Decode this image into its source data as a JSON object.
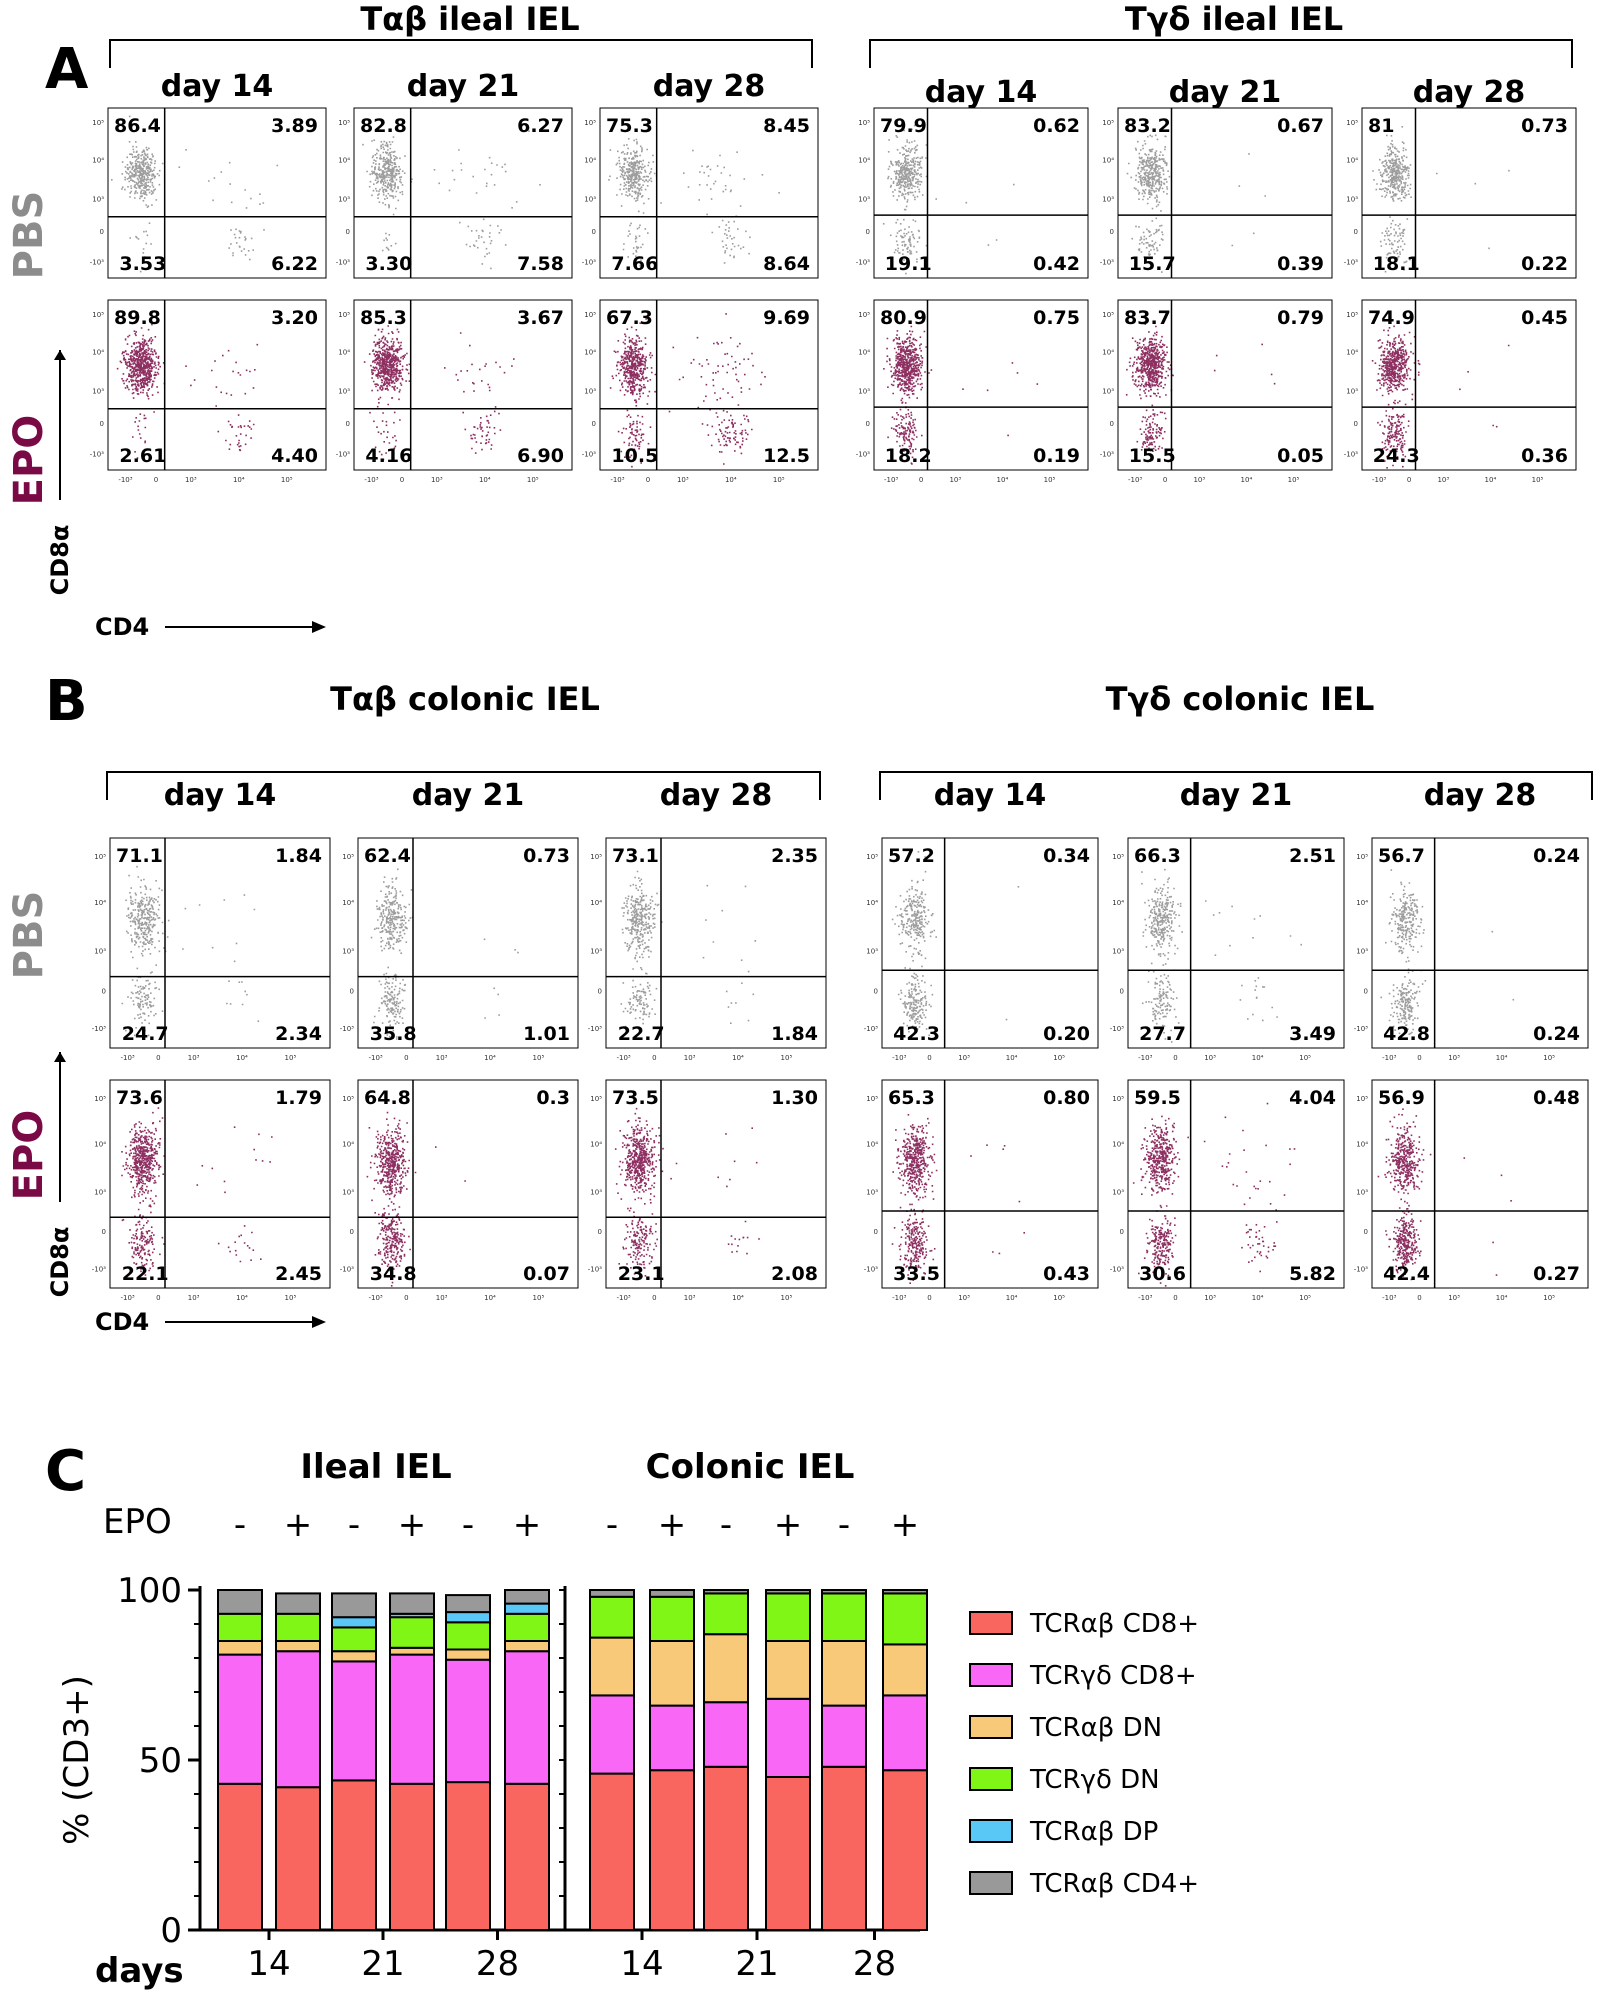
{
  "panels": {
    "A": "A",
    "B": "B",
    "C": "C"
  },
  "axis": {
    "y": "CD8α",
    "x": "CD4",
    "ticks": [
      "10⁵",
      "10⁴",
      "10³",
      "0",
      "-10³"
    ],
    "xticks": [
      "-10³",
      "0",
      "10³",
      "10⁴",
      "10⁵"
    ]
  },
  "row_labels": {
    "pbs": "PBS",
    "epo": "EPO"
  },
  "colors": {
    "pbs": "#8c8c8c",
    "epo": "#7a0a45"
  },
  "flow_sections": [
    {
      "id": "ileal",
      "groups": [
        {
          "title": "Tαβ ileal IEL",
          "days": [
            "day 14",
            "day 21",
            "day 28"
          ],
          "pbs": [
            [
              "86.4",
              "3.89",
              "3.53",
              "6.22"
            ],
            [
              "82.8",
              "6.27",
              "3.30",
              "7.58"
            ],
            [
              "75.3",
              "8.45",
              "7.66",
              "8.64"
            ]
          ],
          "epo": [
            [
              "89.8",
              "3.20",
              "2.61",
              "4.40"
            ],
            [
              "85.3",
              "3.67",
              "4.16",
              "6.90"
            ],
            [
              "67.3",
              "9.69",
              "10.5",
              "12.5"
            ]
          ]
        },
        {
          "title": "Tγδ ileal IEL",
          "days": [
            "day 14",
            "day 21",
            "day 28"
          ],
          "pbs": [
            [
              "79.9",
              "0.62",
              "19.1",
              "0.42"
            ],
            [
              "83.2",
              "0.67",
              "15.7",
              "0.39"
            ],
            [
              "81",
              "0.73",
              "18.1",
              "0.22"
            ]
          ],
          "epo": [
            [
              "80.9",
              "0.75",
              "18.2",
              "0.19"
            ],
            [
              "83.7",
              "0.79",
              "15.5",
              "0.05"
            ],
            [
              "74.9",
              "0.45",
              "24.3",
              "0.36"
            ]
          ]
        }
      ]
    },
    {
      "id": "colonic",
      "groups": [
        {
          "title": "Tαβ colonic IEL",
          "days": [
            "day 14",
            "day 21",
            "day 28"
          ],
          "pbs": [
            [
              "71.1",
              "1.84",
              "24.7",
              "2.34"
            ],
            [
              "62.4",
              "0.73",
              "35.8",
              "1.01"
            ],
            [
              "73.1",
              "2.35",
              "22.7",
              "1.84"
            ]
          ],
          "epo": [
            [
              "73.6",
              "1.79",
              "22.1",
              "2.45"
            ],
            [
              "64.8",
              "0.3",
              "34.8",
              "0.07"
            ],
            [
              "73.5",
              "1.30",
              "23.1",
              "2.08"
            ]
          ]
        },
        {
          "title": "Tγδ colonic IEL",
          "days": [
            "day 14",
            "day 21",
            "day 28"
          ],
          "pbs": [
            [
              "57.2",
              "0.34",
              "42.3",
              "0.20"
            ],
            [
              "66.3",
              "2.51",
              "27.7",
              "3.49"
            ],
            [
              "56.7",
              "0.24",
              "42.8",
              "0.24"
            ]
          ],
          "epo": [
            [
              "65.3",
              "0.80",
              "33.5",
              "0.43"
            ],
            [
              "59.5",
              "4.04",
              "30.6",
              "5.82"
            ],
            [
              "56.9",
              "0.48",
              "42.4",
              "0.27"
            ]
          ]
        }
      ]
    }
  ],
  "chart_data": {
    "type": "bar",
    "stacked": true,
    "ylabel": "% (CD3+)",
    "xlabel": "days",
    "ylim": [
      0,
      100
    ],
    "yticks": [
      "100",
      "50",
      "0"
    ],
    "epo_label": "EPO",
    "epo_flags": [
      "-",
      "+",
      "-",
      "+",
      "-",
      "+"
    ],
    "day_labels": [
      "14",
      "21",
      "28"
    ],
    "groups": [
      {
        "title": "Ileal IEL",
        "stacks": [
          [
            43,
            38,
            4,
            8,
            0,
            7
          ],
          [
            42,
            40,
            3,
            8,
            0,
            6
          ],
          [
            44,
            35,
            3,
            7,
            3,
            7
          ],
          [
            43,
            38,
            2,
            9,
            1,
            6
          ],
          [
            43.5,
            36,
            3,
            8,
            3,
            5
          ],
          [
            43,
            39,
            3,
            8,
            3,
            4
          ]
        ]
      },
      {
        "title": "Colonic IEL",
        "stacks": [
          [
            46,
            23,
            17,
            12,
            0,
            2
          ],
          [
            47,
            19,
            19,
            13,
            0,
            2
          ],
          [
            48,
            19,
            20,
            12,
            0,
            1
          ],
          [
            45,
            23,
            17,
            14,
            0,
            1
          ],
          [
            48,
            18,
            19,
            14,
            0,
            1
          ],
          [
            47,
            22,
            15,
            15,
            0,
            1
          ]
        ]
      }
    ],
    "series": [
      {
        "name": "TCRαβ CD8+",
        "color": "#f8665f"
      },
      {
        "name": "TCRγδ CD8+",
        "color": "#f867f5"
      },
      {
        "name": "TCRαβ DN",
        "color": "#f8c978"
      },
      {
        "name": "TCRγδ DN",
        "color": "#80f617"
      },
      {
        "name": "TCRαβ DP",
        "color": "#5ac8f7"
      },
      {
        "name": "TCRαβ CD4+",
        "color": "#999999"
      }
    ]
  }
}
